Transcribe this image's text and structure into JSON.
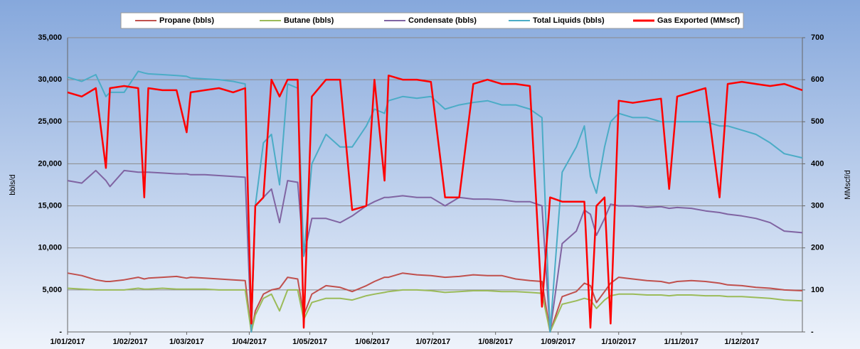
{
  "chart_data": {
    "type": "line",
    "y_label": "bbls/d",
    "y2_label": "MMscf/d",
    "x": [
      "2017-01-01",
      "2017-01-08",
      "2017-01-15",
      "2017-01-20",
      "2017-01-22",
      "2017-01-29",
      "2017-02-05",
      "2017-02-08",
      "2017-02-10",
      "2017-02-17",
      "2017-02-24",
      "2017-03-01",
      "2017-03-03",
      "2017-03-10",
      "2017-03-17",
      "2017-03-24",
      "2017-03-30",
      "2017-04-02",
      "2017-04-04",
      "2017-04-08",
      "2017-04-12",
      "2017-04-16",
      "2017-04-20",
      "2017-04-25",
      "2017-04-28",
      "2017-05-02",
      "2017-05-09",
      "2017-05-16",
      "2017-05-22",
      "2017-05-29",
      "2017-06-02",
      "2017-06-07",
      "2017-06-09",
      "2017-06-16",
      "2017-06-23",
      "2017-06-30",
      "2017-07-07",
      "2017-07-14",
      "2017-07-21",
      "2017-07-28",
      "2017-08-04",
      "2017-08-11",
      "2017-08-18",
      "2017-08-24",
      "2017-08-28",
      "2017-09-03",
      "2017-09-10",
      "2017-09-14",
      "2017-09-17",
      "2017-09-20",
      "2017-09-24",
      "2017-09-27",
      "2017-10-01",
      "2017-10-08",
      "2017-10-15",
      "2017-10-22",
      "2017-10-26",
      "2017-10-30",
      "2017-11-06",
      "2017-11-13",
      "2017-11-20",
      "2017-11-24",
      "2017-12-01",
      "2017-12-08",
      "2017-12-15",
      "2017-12-22",
      "2017-12-31"
    ],
    "series": [
      {
        "name": "Propane (bbls)",
        "color": "#c0504d",
        "values": [
          7000,
          6700,
          6200,
          6000,
          6000,
          6200,
          6500,
          6300,
          6400,
          6500,
          6600,
          6400,
          6500,
          6400,
          6300,
          6200,
          6100,
          0,
          2500,
          4500,
          5000,
          5200,
          6500,
          6300,
          2000,
          4500,
          5500,
          5300,
          4800,
          5500,
          6000,
          6500,
          6500,
          7000,
          6800,
          6700,
          6500,
          6600,
          6800,
          6700,
          6700,
          6300,
          6100,
          6000,
          0,
          4200,
          4800,
          5800,
          5500,
          3500,
          4800,
          5800,
          6500,
          6300,
          6100,
          6000,
          5800,
          6000,
          6100,
          6000,
          5800,
          5600,
          5500,
          5300,
          5200,
          5000,
          4900
        ]
      },
      {
        "name": "Butane (bbls)",
        "color": "#9bbb59",
        "values": [
          5200,
          5100,
          5000,
          5000,
          5000,
          5000,
          5200,
          5100,
          5100,
          5200,
          5100,
          5100,
          5100,
          5100,
          5000,
          5000,
          5000,
          0,
          2000,
          4000,
          4500,
          2500,
          5000,
          5000,
          1500,
          3500,
          4000,
          4000,
          3800,
          4300,
          4500,
          4700,
          4800,
          5000,
          5000,
          4900,
          4700,
          4800,
          4900,
          4900,
          4800,
          4800,
          4700,
          4600,
          0,
          3300,
          3700,
          4000,
          3800,
          2800,
          3800,
          4300,
          4500,
          4500,
          4400,
          4400,
          4300,
          4400,
          4400,
          4300,
          4300,
          4200,
          4200,
          4100,
          4000,
          3800,
          3700
        ]
      },
      {
        "name": "Condensate (bbls)",
        "color": "#8064a2",
        "values": [
          18000,
          17700,
          19200,
          18000,
          17300,
          19200,
          19000,
          19000,
          19000,
          18900,
          18800,
          18800,
          18700,
          18700,
          18600,
          18500,
          18400,
          0,
          15000,
          16000,
          17000,
          13000,
          18000,
          17800,
          9000,
          13500,
          13500,
          13000,
          13800,
          15000,
          15500,
          16000,
          16000,
          16200,
          16000,
          16000,
          15000,
          16000,
          15800,
          15800,
          15700,
          15500,
          15500,
          15000,
          0,
          10500,
          12000,
          14500,
          14000,
          11500,
          13500,
          15200,
          15000,
          15000,
          14800,
          14900,
          14700,
          14800,
          14700,
          14400,
          14200,
          14000,
          13800,
          13500,
          13000,
          12000,
          11800
        ]
      },
      {
        "name": "Total Liquids (bbls)",
        "color": "#4bacc6",
        "values": [
          30300,
          29800,
          30600,
          28000,
          28500,
          28500,
          31000,
          30800,
          30700,
          30600,
          30500,
          30400,
          30200,
          30100,
          30000,
          29800,
          29500,
          0,
          15000,
          22500,
          23500,
          17500,
          29500,
          29000,
          9000,
          20000,
          23500,
          22000,
          22000,
          24500,
          26500,
          26000,
          27500,
          28000,
          27800,
          28000,
          26500,
          27000,
          27300,
          27500,
          27000,
          27000,
          26500,
          25500,
          0,
          19000,
          22000,
          24500,
          18500,
          16500,
          22000,
          25000,
          26000,
          25500,
          25500,
          25000,
          25000,
          25000,
          25000,
          25000,
          24500,
          24500,
          24000,
          23500,
          22500,
          21200,
          20700
        ]
      },
      {
        "name": "Gas Exported (MMscf)",
        "color": "#ff0000",
        "axis": "y2",
        "values": [
          570,
          560,
          580,
          390,
          580,
          585,
          580,
          320,
          580,
          575,
          575,
          475,
          570,
          575,
          580,
          570,
          580,
          20,
          300,
          320,
          600,
          560,
          600,
          600,
          10,
          560,
          600,
          600,
          290,
          300,
          600,
          360,
          610,
          600,
          600,
          595,
          320,
          320,
          590,
          600,
          590,
          590,
          585,
          60,
          320,
          310,
          310,
          310,
          10,
          300,
          320,
          20,
          550,
          545,
          550,
          555,
          340,
          560,
          570,
          580,
          320,
          590,
          595,
          590,
          585,
          590,
          575
        ]
      }
    ],
    "xlim": [
      "2017-01-01",
      "2017-12-31"
    ],
    "xticks": [
      {
        "value": "2017-01-01",
        "label": "1/01/2017"
      },
      {
        "value": "2017-02-01",
        "label": "1/02/2017"
      },
      {
        "value": "2017-03-01",
        "label": "1/03/2017"
      },
      {
        "value": "2017-04-01",
        "label": "1/04/2017"
      },
      {
        "value": "2017-05-01",
        "label": "1/05/2017"
      },
      {
        "value": "2017-06-01",
        "label": "1/06/2017"
      },
      {
        "value": "2017-07-01",
        "label": "1/07/2017"
      },
      {
        "value": "2017-08-01",
        "label": "1/08/2017"
      },
      {
        "value": "2017-09-01",
        "label": "1/09/2017"
      },
      {
        "value": "2017-10-01",
        "label": "1/10/2017"
      },
      {
        "value": "2017-11-01",
        "label": "1/11/2017"
      },
      {
        "value": "2017-12-01",
        "label": "1/12/2017"
      }
    ],
    "ylim": [
      0,
      35000
    ],
    "yticks": [
      {
        "value": 0,
        "label": "-"
      },
      {
        "value": 5000,
        "label": "5,000"
      },
      {
        "value": 10000,
        "label": "10,000"
      },
      {
        "value": 15000,
        "label": "15,000"
      },
      {
        "value": 20000,
        "label": "20,000"
      },
      {
        "value": 25000,
        "label": "25,000"
      },
      {
        "value": 30000,
        "label": "30,000"
      },
      {
        "value": 35000,
        "label": "35,000"
      }
    ],
    "y2lim": [
      0,
      700
    ],
    "y2ticks": [
      {
        "value": 0,
        "label": "-"
      },
      100,
      200,
      300,
      400,
      500,
      600,
      700
    ],
    "grid": true,
    "legend": "top"
  }
}
